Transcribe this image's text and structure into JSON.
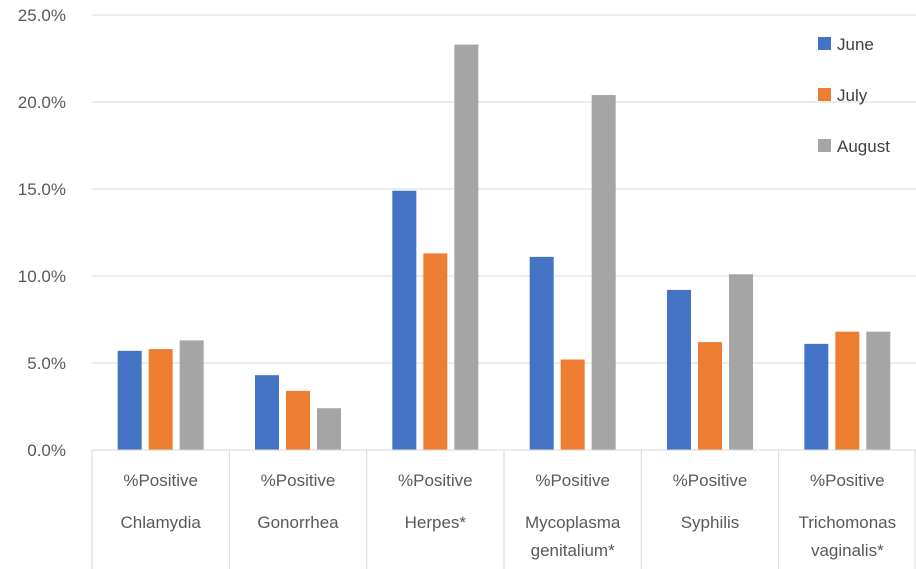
{
  "chart_data": {
    "type": "bar",
    "categories": [
      [
        "%Positive",
        "Chlamydia"
      ],
      [
        "%Positive",
        "Gonorrhea"
      ],
      [
        "%Positive",
        "Herpes*"
      ],
      [
        "%Positive",
        "Mycoplasma",
        "genitalium*"
      ],
      [
        "%Positive",
        "Syphilis"
      ],
      [
        "%Positive",
        "Trichomonas",
        "vaginalis*"
      ]
    ],
    "series": [
      {
        "name": "June",
        "color": "#4472C4",
        "values": [
          5.7,
          4.3,
          14.9,
          11.1,
          9.2,
          6.1
        ]
      },
      {
        "name": "July",
        "color": "#ED7D31",
        "values": [
          5.8,
          3.4,
          11.3,
          5.2,
          6.2,
          6.8
        ]
      },
      {
        "name": "August",
        "color": "#A5A5A5",
        "values": [
          6.3,
          2.4,
          23.3,
          20.4,
          10.1,
          6.8
        ]
      }
    ],
    "ylim": [
      0,
      25
    ],
    "yticks": [
      "0.0%",
      "5.0%",
      "10.0%",
      "15.0%",
      "20.0%",
      "25.0%"
    ],
    "grid": true,
    "legend": "top-right",
    "title": "",
    "xlabel": "",
    "ylabel": ""
  }
}
